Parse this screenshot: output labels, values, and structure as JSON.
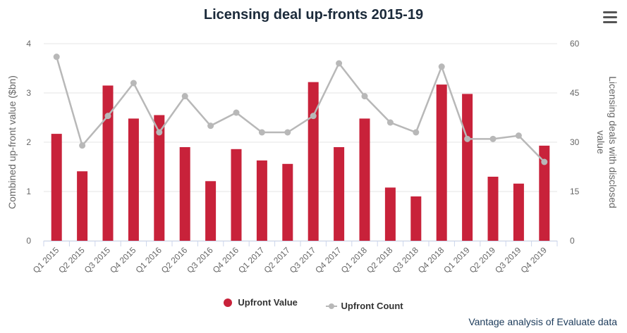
{
  "title": "Licensing deal up-fronts 2015-19",
  "menu_icon": "hamburger-menu-icon",
  "credit": "Vantage analysis of Evaluate data",
  "colors": {
    "bar": "#c8223a",
    "line": "#b8b8b8",
    "title": "#1b2a3a"
  },
  "legend": {
    "bar_label": "Upfront Value",
    "line_label": "Upfront Count"
  },
  "chart_data": {
    "type": "bar+line",
    "title": "Licensing deal up-fronts 2015-19",
    "categories": [
      "Q1 2015",
      "Q2 2015",
      "Q3 2015",
      "Q4 2015",
      "Q1 2016",
      "Q2 2016",
      "Q3 2016",
      "Q4 2016",
      "Q1 2017",
      "Q2 2017",
      "Q3 2017",
      "Q4 2017",
      "Q1 2018",
      "Q2 2018",
      "Q3 2018",
      "Q4 2018",
      "Q1 2019",
      "Q2 2019",
      "Q3 2019",
      "Q4 2019"
    ],
    "series": [
      {
        "name": "Upfront Value",
        "type": "bar",
        "axis": "left",
        "values": [
          2.17,
          1.41,
          3.15,
          2.48,
          2.55,
          1.9,
          1.21,
          1.86,
          1.63,
          1.56,
          3.22,
          1.9,
          2.48,
          1.08,
          0.9,
          3.17,
          2.98,
          1.3,
          1.16,
          1.93
        ]
      },
      {
        "name": "Upfront Count",
        "type": "line",
        "axis": "right",
        "values": [
          56,
          29,
          38,
          48,
          33,
          44,
          35,
          39,
          33,
          33,
          38,
          54,
          44,
          36,
          33,
          53,
          31,
          31,
          32,
          24
        ]
      }
    ],
    "ylabel": "Combined up-front value ($bn)",
    "y2label": "Licensing deals with disclosed value",
    "ylim": [
      0,
      4
    ],
    "y2lim": [
      0,
      60
    ],
    "yticks": [
      0,
      1,
      2,
      3,
      4
    ],
    "y2ticks": [
      0,
      15,
      30,
      45,
      60
    ],
    "legend_position": "bottom",
    "grid": true
  }
}
